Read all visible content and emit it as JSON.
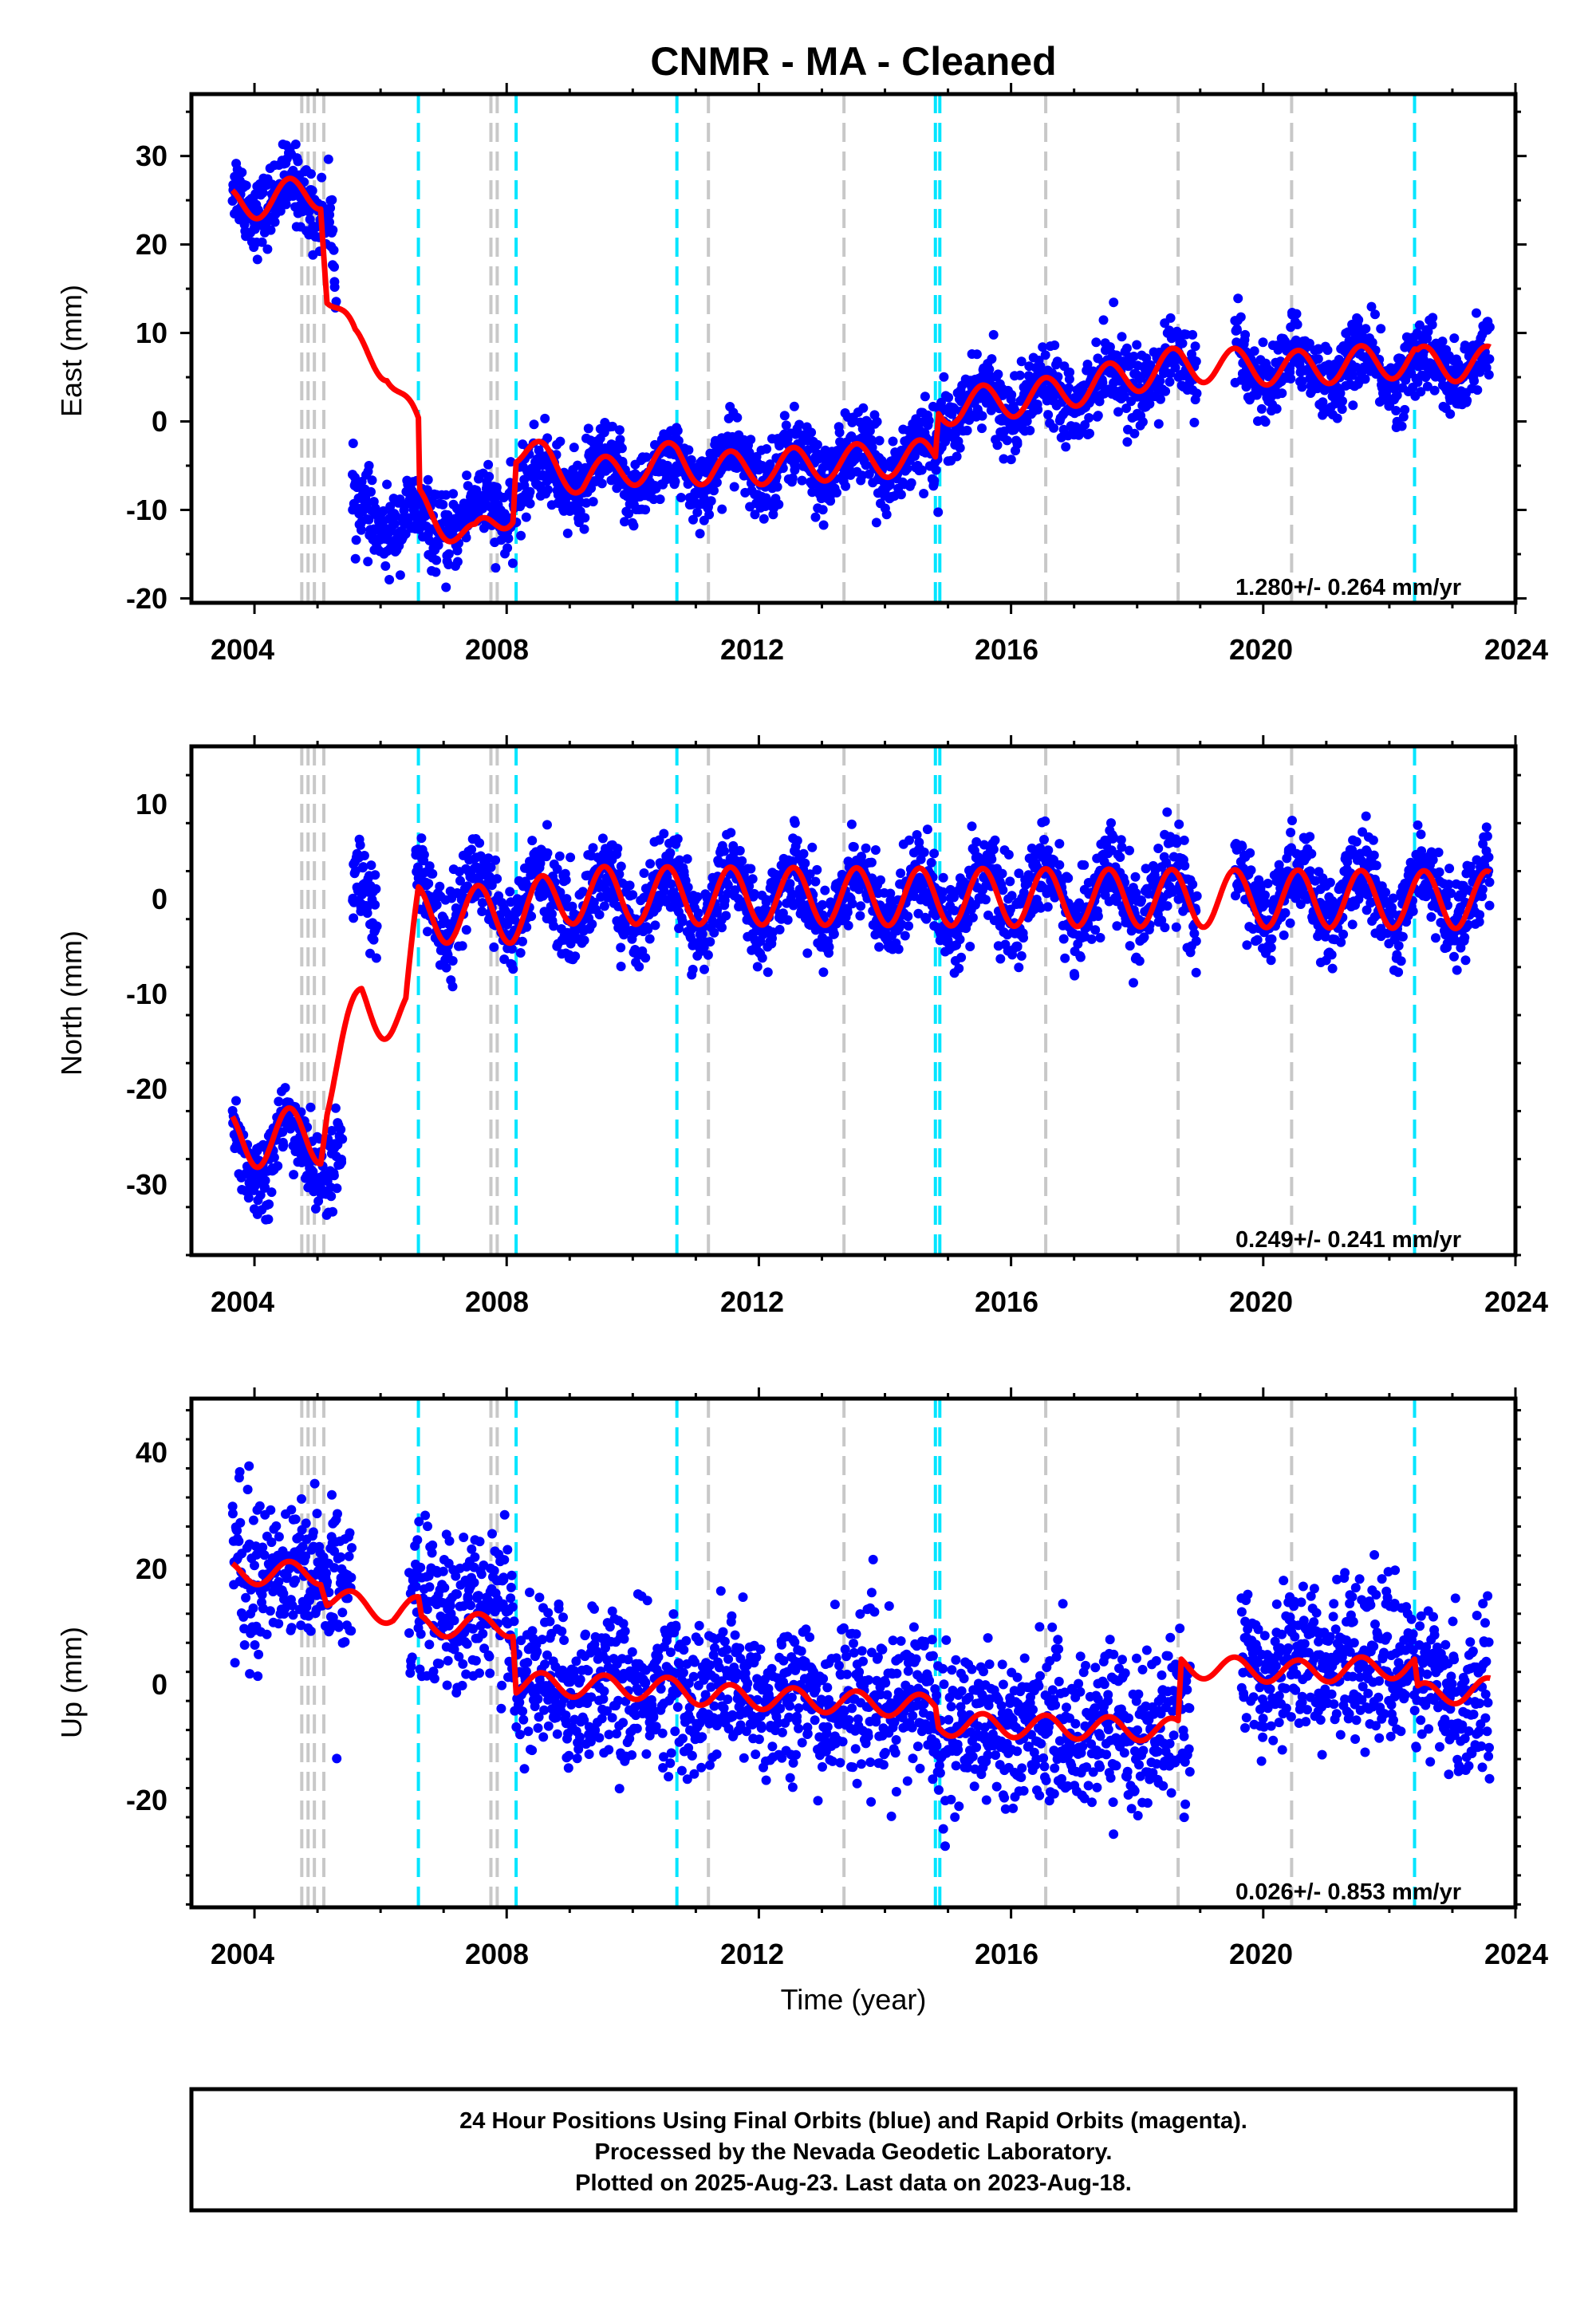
{
  "title": "CNMR  - MA - Cleaned",
  "xlabel": "Time (year)",
  "x_ticks": [
    "2004",
    "2008",
    "2012",
    "2016",
    "2020",
    "2024"
  ],
  "footer": {
    "line1": "24 Hour Positions Using Final Orbits (blue) and Rapid Orbits (magenta).",
    "line2": "Processed by the Nevada Geodetic Laboratory.",
    "line3": "Plotted on 2025-Aug-23. Last data on 2023-Aug-18."
  },
  "colors": {
    "points": "#0000ff",
    "model": "#ff0000",
    "cyan_line": "#00e5ff",
    "gray_line": "#c8c8c8",
    "frame": "#000000"
  },
  "chart_data": [
    {
      "type": "scatter",
      "panel": "east",
      "ylabel": "East (mm)",
      "y_ticks": [
        "30",
        "20",
        "10",
        "0",
        "-10",
        "-20"
      ],
      "rate_label": "1.280+/- 0.264 mm/yr",
      "xlim": [
        2003.0,
        2024.0
      ],
      "ylim": [
        -20.5,
        37
      ],
      "model_trend": [
        [
          2003.65,
          24.5
        ],
        [
          2005.05,
          26.0
        ],
        [
          2005.15,
          15.0
        ],
        [
          2005.6,
          8.5
        ],
        [
          2006.1,
          6.5
        ],
        [
          2006.6,
          -1.5
        ],
        [
          2006.62,
          -9.5
        ],
        [
          2007.5,
          -13.5
        ],
        [
          2008.1,
          -9.5
        ],
        [
          2008.15,
          -3.0
        ],
        [
          2009.2,
          -6.5
        ],
        [
          2010.7,
          -4.2
        ],
        [
          2011.2,
          -5.5
        ],
        [
          2014.8,
          -4.0
        ],
        [
          2014.85,
          1.5
        ],
        [
          2016.6,
          3.0
        ],
        [
          2018.7,
          6.5
        ],
        [
          2020.5,
          6.0
        ],
        [
          2022.4,
          7.0
        ],
        [
          2022.45,
          6.5
        ],
        [
          2023.6,
          6.5
        ]
      ],
      "model_amplitude": 2.0,
      "scatter_trend": [
        [
          2003.65,
          25.5
        ],
        [
          2005.2,
          25.0
        ],
        [
          2005.55,
          -10
        ],
        [
          2006.6,
          -12
        ],
        [
          2008.0,
          -10
        ],
        [
          2008.2,
          -7
        ],
        [
          2012.0,
          -5
        ],
        [
          2014.8,
          -4
        ],
        [
          2014.9,
          1
        ],
        [
          2016.5,
          3
        ],
        [
          2018.7,
          6
        ],
        [
          2023.6,
          6
        ]
      ],
      "scatter_noise": 2.1,
      "scatter_gaps": [
        [
          2005.3,
          2005.55
        ],
        [
          2008.7,
          2008.71
        ],
        [
          2018.95,
          2019.55
        ]
      ],
      "cyan_lines": [
        2006.6,
        2008.15,
        2010.7,
        2014.8,
        2014.87,
        2022.4
      ],
      "gray_lines": [
        2004.75,
        2004.85,
        2004.95,
        2005.1,
        2007.75,
        2007.85,
        2011.2,
        2013.35,
        2016.55,
        2018.65,
        2020.45
      ]
    },
    {
      "type": "scatter",
      "panel": "north",
      "ylabel": "North (mm)",
      "y_ticks": [
        "10",
        "0",
        "-10",
        "-20",
        "-30"
      ],
      "rate_label": "0.249+/- 0.241 mm/yr",
      "xlim": [
        2003.0,
        2024.0
      ],
      "ylim": [
        -37,
        16
      ],
      "model_trend": [
        [
          2003.65,
          -25
        ],
        [
          2005.05,
          -24.5
        ],
        [
          2005.15,
          -20
        ],
        [
          2005.7,
          -11
        ],
        [
          2006.4,
          -12
        ],
        [
          2006.6,
          -1.5
        ],
        [
          2008.1,
          -1.5
        ],
        [
          2009.0,
          0.5
        ],
        [
          2023.6,
          0.0
        ]
      ],
      "model_amplitude": 3.0,
      "scatter_trend": [
        [
          2003.65,
          -26
        ],
        [
          2005.4,
          -26
        ],
        [
          2005.6,
          0
        ],
        [
          2006.6,
          0
        ],
        [
          2023.6,
          0.5
        ]
      ],
      "scatter_noise": 2.2,
      "scatter_gaps": [
        [
          2005.4,
          2005.55
        ],
        [
          2005.95,
          2006.55
        ],
        [
          2018.95,
          2019.55
        ]
      ],
      "cyan_lines": [
        2006.6,
        2008.15,
        2010.7,
        2014.8,
        2014.87,
        2022.4
      ],
      "gray_lines": [
        2004.75,
        2004.85,
        2004.95,
        2005.1,
        2007.75,
        2007.85,
        2011.2,
        2013.35,
        2016.55,
        2018.65,
        2020.45
      ]
    },
    {
      "type": "scatter",
      "panel": "up",
      "ylabel": "Up (mm)",
      "y_ticks": [
        "40",
        "20",
        "0",
        "-20"
      ],
      "rate_label": "0.026+/- 0.853 mm/yr",
      "xlim": [
        2003.0,
        2024.0
      ],
      "ylim": [
        -38.5,
        49
      ],
      "model_trend": [
        [
          2003.65,
          19
        ],
        [
          2005.05,
          19
        ],
        [
          2005.15,
          15
        ],
        [
          2006.2,
          12
        ],
        [
          2006.6,
          13
        ],
        [
          2006.65,
          10
        ],
        [
          2008.1,
          10
        ],
        [
          2008.15,
          0
        ],
        [
          2010.7,
          -1
        ],
        [
          2011.2,
          -2
        ],
        [
          2014.8,
          -4
        ],
        [
          2014.85,
          -7
        ],
        [
          2018.65,
          -8
        ],
        [
          2018.7,
          3
        ],
        [
          2020.5,
          2
        ],
        [
          2022.4,
          3
        ],
        [
          2022.45,
          -2
        ],
        [
          2023.6,
          -1
        ]
      ],
      "model_amplitude": 2.0,
      "scatter_trend": [
        [
          2003.65,
          20
        ],
        [
          2005.5,
          18
        ],
        [
          2006.5,
          14
        ],
        [
          2008.1,
          12
        ],
        [
          2008.2,
          0
        ],
        [
          2014.8,
          -4
        ],
        [
          2014.9,
          -7
        ],
        [
          2018.65,
          -8
        ],
        [
          2019.7,
          4
        ],
        [
          2022.4,
          4
        ],
        [
          2022.5,
          -2
        ],
        [
          2023.6,
          -2
        ]
      ],
      "scatter_noise": 6.5,
      "scatter_gaps": [
        [
          2005.55,
          2006.45
        ],
        [
          2018.85,
          2019.65
        ]
      ],
      "cyan_lines": [
        2006.6,
        2008.15,
        2010.7,
        2014.8,
        2014.87,
        2022.4
      ],
      "gray_lines": [
        2004.75,
        2004.85,
        2004.95,
        2005.1,
        2007.75,
        2007.85,
        2011.2,
        2013.35,
        2016.55,
        2018.65,
        2020.45
      ]
    }
  ]
}
